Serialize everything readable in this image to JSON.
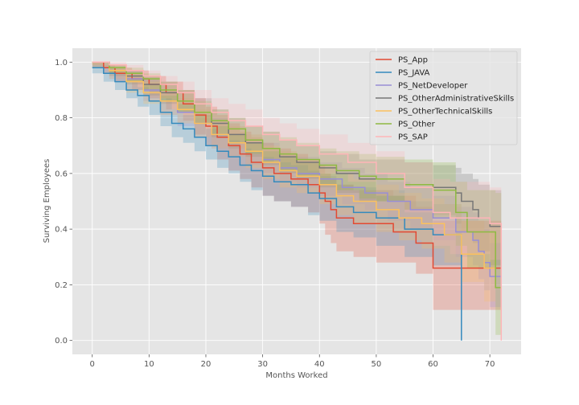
{
  "chart_data": {
    "type": "line",
    "subtype": "kaplan-meier step curves with confidence bands",
    "xlabel": "Months Worked",
    "ylabel": "Surviving Employees",
    "xlim": [
      -3.5,
      75.5
    ],
    "ylim": [
      -0.05,
      1.05
    ],
    "xticks": [
      0,
      10,
      20,
      30,
      40,
      50,
      60,
      70
    ],
    "yticks": [
      0.0,
      0.2,
      0.4,
      0.6,
      0.8,
      1.0
    ],
    "grid": true,
    "legend_position": "top-right",
    "style": {
      "background": "#e5e5e5",
      "grid": "#ffffff",
      "tick_text": "#555555",
      "label_text": "#555555"
    },
    "series": [
      {
        "name": "PS_App",
        "color": "#e24a33",
        "x": [
          0,
          2,
          4,
          7,
          10,
          13,
          16,
          18,
          20,
          22,
          24,
          26,
          28,
          30,
          32,
          35,
          38,
          40,
          41,
          42,
          43,
          46,
          50,
          53,
          55,
          57,
          60,
          65,
          72
        ],
        "y": [
          1.0,
          0.98,
          0.96,
          0.94,
          0.92,
          0.89,
          0.85,
          0.81,
          0.77,
          0.73,
          0.7,
          0.67,
          0.64,
          0.62,
          0.6,
          0.58,
          0.56,
          0.53,
          0.5,
          0.47,
          0.44,
          0.42,
          0.42,
          0.39,
          0.39,
          0.35,
          0.26,
          0.26,
          0.26
        ],
        "lower": [
          0.99,
          0.96,
          0.93,
          0.9,
          0.87,
          0.83,
          0.79,
          0.74,
          0.7,
          0.65,
          0.61,
          0.58,
          0.55,
          0.52,
          0.5,
          0.48,
          0.46,
          0.42,
          0.38,
          0.35,
          0.32,
          0.3,
          0.28,
          0.28,
          0.28,
          0.24,
          0.11,
          0.11,
          0.11
        ],
        "upper": [
          1.0,
          0.99,
          0.98,
          0.97,
          0.95,
          0.93,
          0.9,
          0.87,
          0.84,
          0.81,
          0.78,
          0.75,
          0.73,
          0.71,
          0.69,
          0.67,
          0.65,
          0.63,
          0.6,
          0.58,
          0.56,
          0.54,
          0.54,
          0.52,
          0.52,
          0.48,
          0.43,
          0.43,
          0.43
        ]
      },
      {
        "name": "PS_JAVA",
        "color": "#348abd",
        "x": [
          0,
          2,
          4,
          6,
          8,
          10,
          12,
          14,
          16,
          18,
          20,
          22,
          24,
          26,
          28,
          30,
          32,
          35,
          38,
          40,
          43,
          46,
          50,
          55,
          60,
          65
        ],
        "y": [
          0.98,
          0.96,
          0.93,
          0.9,
          0.88,
          0.86,
          0.82,
          0.78,
          0.76,
          0.73,
          0.7,
          0.68,
          0.66,
          0.63,
          0.61,
          0.59,
          0.57,
          0.56,
          0.53,
          0.51,
          0.48,
          0.46,
          0.44,
          0.4,
          0.38,
          0.0
        ],
        "lower": [
          0.96,
          0.93,
          0.9,
          0.87,
          0.84,
          0.81,
          0.77,
          0.73,
          0.71,
          0.68,
          0.65,
          0.62,
          0.6,
          0.57,
          0.54,
          0.52,
          0.5,
          0.48,
          0.45,
          0.43,
          0.39,
          0.37,
          0.34,
          0.3,
          0.27,
          0.0
        ],
        "upper": [
          0.99,
          0.98,
          0.96,
          0.93,
          0.91,
          0.9,
          0.87,
          0.83,
          0.81,
          0.78,
          0.76,
          0.74,
          0.72,
          0.69,
          0.68,
          0.66,
          0.64,
          0.63,
          0.61,
          0.59,
          0.56,
          0.55,
          0.54,
          0.5,
          0.49,
          0.0
        ]
      },
      {
        "name": "PS_NetDeveloper",
        "color": "#988ed5",
        "x": [
          0,
          3,
          6,
          9,
          12,
          15,
          18,
          21,
          24,
          27,
          30,
          33,
          36,
          40,
          44,
          48,
          52,
          56,
          60,
          64,
          67,
          68,
          69,
          70,
          72
        ],
        "y": [
          1.0,
          0.97,
          0.94,
          0.9,
          0.86,
          0.82,
          0.78,
          0.74,
          0.71,
          0.68,
          0.65,
          0.62,
          0.6,
          0.58,
          0.55,
          0.53,
          0.5,
          0.47,
          0.44,
          0.39,
          0.36,
          0.32,
          0.28,
          0.23,
          0.23
        ],
        "lower": [
          0.98,
          0.94,
          0.9,
          0.86,
          0.81,
          0.77,
          0.73,
          0.69,
          0.66,
          0.63,
          0.6,
          0.57,
          0.55,
          0.52,
          0.49,
          0.47,
          0.43,
          0.4,
          0.36,
          0.3,
          0.27,
          0.22,
          0.18,
          0.12,
          0.12
        ],
        "upper": [
          1.0,
          0.99,
          0.97,
          0.94,
          0.9,
          0.87,
          0.83,
          0.8,
          0.77,
          0.74,
          0.71,
          0.68,
          0.66,
          0.64,
          0.62,
          0.6,
          0.57,
          0.55,
          0.52,
          0.48,
          0.46,
          0.43,
          0.4,
          0.35,
          0.35
        ]
      },
      {
        "name": "PS_OtherAdministrativeSkills",
        "color": "#777777",
        "x": [
          0,
          3,
          6,
          9,
          12,
          15,
          18,
          21,
          24,
          27,
          30,
          33,
          36,
          40,
          43,
          47,
          50,
          55,
          60,
          64,
          65,
          67,
          68,
          70,
          72
        ],
        "y": [
          1.0,
          0.98,
          0.95,
          0.92,
          0.89,
          0.86,
          0.82,
          0.78,
          0.74,
          0.71,
          0.69,
          0.66,
          0.64,
          0.62,
          0.6,
          0.58,
          0.58,
          0.56,
          0.55,
          0.53,
          0.5,
          0.47,
          0.44,
          0.41,
          0.41
        ],
        "lower": [
          0.98,
          0.95,
          0.92,
          0.88,
          0.85,
          0.82,
          0.78,
          0.73,
          0.69,
          0.66,
          0.63,
          0.6,
          0.58,
          0.55,
          0.53,
          0.5,
          0.5,
          0.47,
          0.45,
          0.42,
          0.39,
          0.35,
          0.32,
          0.27,
          0.27
        ],
        "upper": [
          1.0,
          0.99,
          0.97,
          0.95,
          0.93,
          0.9,
          0.87,
          0.83,
          0.8,
          0.77,
          0.75,
          0.72,
          0.7,
          0.68,
          0.67,
          0.65,
          0.65,
          0.64,
          0.63,
          0.62,
          0.6,
          0.58,
          0.56,
          0.54,
          0.54
        ]
      },
      {
        "name": "PS_OtherTechnicalSkills",
        "color": "#fbc15e",
        "x": [
          0,
          3,
          6,
          9,
          12,
          15,
          18,
          21,
          24,
          27,
          30,
          33,
          36,
          40,
          43,
          46,
          50,
          54,
          58,
          62,
          65,
          69,
          71
        ],
        "y": [
          1.0,
          0.97,
          0.93,
          0.89,
          0.86,
          0.83,
          0.78,
          0.74,
          0.71,
          0.68,
          0.64,
          0.61,
          0.59,
          0.56,
          0.52,
          0.5,
          0.47,
          0.44,
          0.42,
          0.38,
          0.31,
          0.26,
          0.26
        ],
        "lower": [
          0.98,
          0.94,
          0.89,
          0.85,
          0.81,
          0.78,
          0.73,
          0.69,
          0.66,
          0.62,
          0.58,
          0.55,
          0.53,
          0.49,
          0.45,
          0.42,
          0.39,
          0.36,
          0.33,
          0.28,
          0.21,
          0.14,
          0.14
        ],
        "upper": [
          1.0,
          0.99,
          0.96,
          0.93,
          0.9,
          0.87,
          0.83,
          0.79,
          0.77,
          0.74,
          0.7,
          0.68,
          0.65,
          0.63,
          0.6,
          0.58,
          0.56,
          0.53,
          0.51,
          0.49,
          0.43,
          0.39,
          0.39
        ]
      },
      {
        "name": "PS_Other",
        "color": "#8eba42",
        "x": [
          0,
          3,
          6,
          9,
          12,
          15,
          18,
          21,
          24,
          27,
          30,
          33,
          36,
          40,
          43,
          47,
          50,
          55,
          60,
          64,
          66,
          70,
          71,
          72
        ],
        "y": [
          1.0,
          0.98,
          0.96,
          0.94,
          0.9,
          0.86,
          0.82,
          0.79,
          0.76,
          0.72,
          0.69,
          0.67,
          0.65,
          0.63,
          0.61,
          0.59,
          0.58,
          0.56,
          0.54,
          0.46,
          0.39,
          0.39,
          0.19,
          0.19
        ],
        "lower": [
          0.99,
          0.96,
          0.93,
          0.9,
          0.86,
          0.82,
          0.78,
          0.74,
          0.71,
          0.67,
          0.64,
          0.61,
          0.59,
          0.56,
          0.54,
          0.51,
          0.5,
          0.47,
          0.44,
          0.34,
          0.26,
          0.26,
          0.02,
          0.02
        ],
        "upper": [
          1.0,
          0.99,
          0.98,
          0.96,
          0.93,
          0.9,
          0.86,
          0.83,
          0.8,
          0.77,
          0.75,
          0.73,
          0.71,
          0.69,
          0.68,
          0.67,
          0.66,
          0.65,
          0.64,
          0.57,
          0.54,
          0.54,
          0.53,
          0.53
        ]
      },
      {
        "name": "PS_SAP",
        "color": "#ffb5b8",
        "x": [
          0,
          3,
          6,
          9,
          12,
          15,
          18,
          21,
          24,
          27,
          30,
          33,
          36,
          40,
          45,
          50,
          55,
          60,
          63,
          65,
          70,
          72
        ],
        "y": [
          1.0,
          0.99,
          0.97,
          0.95,
          0.92,
          0.89,
          0.85,
          0.82,
          0.79,
          0.77,
          0.74,
          0.72,
          0.7,
          0.67,
          0.64,
          0.6,
          0.55,
          0.46,
          0.44,
          0.44,
          0.42,
          0.0
        ],
        "lower": [
          0.99,
          0.97,
          0.94,
          0.92,
          0.88,
          0.85,
          0.81,
          0.77,
          0.74,
          0.71,
          0.68,
          0.66,
          0.64,
          0.6,
          0.57,
          0.52,
          0.46,
          0.34,
          0.31,
          0.31,
          0.29,
          0.0
        ],
        "upper": [
          1.0,
          1.0,
          0.99,
          0.97,
          0.95,
          0.93,
          0.9,
          0.87,
          0.85,
          0.83,
          0.8,
          0.78,
          0.76,
          0.74,
          0.71,
          0.68,
          0.64,
          0.58,
          0.57,
          0.57,
          0.55,
          0.0
        ]
      }
    ]
  }
}
